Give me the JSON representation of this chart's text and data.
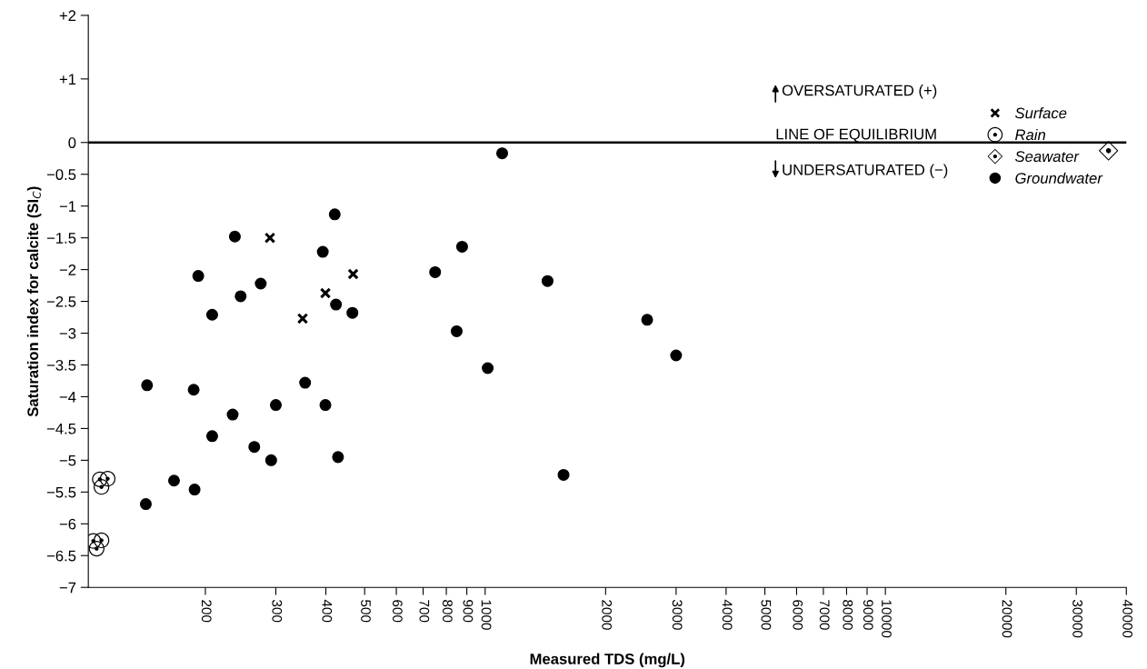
{
  "chart_data": {
    "type": "scatter",
    "xlabel": "Measured TDS (mg/L)",
    "ylabel": "Saturation index for calcite (SI$_{C}$)",
    "log": "x",
    "grid": false,
    "legend": "right",
    "xlim": [
      102,
      40000
    ],
    "xticks": [
      200,
      300,
      400,
      500,
      600,
      700,
      800,
      900,
      1000,
      2000,
      3000,
      4000,
      5000,
      6000,
      7000,
      8000,
      9000,
      10000,
      20000,
      30000,
      40000
    ],
    "ylim": [
      -7,
      2
    ],
    "yticks": [
      {
        "value": 2,
        "label": "+2"
      },
      {
        "value": 1,
        "label": "+1"
      },
      0,
      {
        "value": -0.5,
        "label": "−0.5"
      },
      {
        "value": -1,
        "label": "−1"
      },
      {
        "value": -1.5,
        "label": "−1.5"
      },
      {
        "value": -2,
        "label": "−2"
      },
      {
        "value": -2.5,
        "label": "−2.5"
      },
      {
        "value": -3,
        "label": "−3"
      },
      {
        "value": -3.5,
        "label": "−3.5"
      },
      {
        "value": -4,
        "label": "−4"
      },
      {
        "value": -4.5,
        "label": "−4.5"
      },
      {
        "value": -5,
        "label": "−5"
      },
      {
        "value": -5.5,
        "label": "−5.5"
      },
      {
        "value": -6,
        "label": "−6"
      },
      {
        "value": -6.5,
        "label": "−6.5"
      },
      {
        "value": -7,
        "label": "−7"
      }
    ],
    "ref_lines": [
      {
        "axis": "y",
        "value": 0,
        "label": "LINE OF EQUILIBRIUM",
        "color": "#000000"
      }
    ],
    "annotations": [
      "OVERSATURATED (+)",
      "UNDERSATURATED (−)"
    ],
    "series": [
      {
        "name": "Surface",
        "color": "#000000",
        "marker": "cross",
        "x": [
          290,
          468,
          399,
          350
        ],
        "values": [
          -1.5,
          -2.07,
          -2.37,
          -2.77
        ]
      },
      {
        "name": "Rain",
        "color": "#000000",
        "marker": "circle",
        "x": [
          109,
          114,
          110,
          105,
          110,
          107
        ],
        "values": [
          -5.3,
          -5.29,
          -5.42,
          -6.27,
          -6.26,
          -6.39
        ]
      },
      {
        "name": "Seawater",
        "color": "#000000",
        "marker": "diamond",
        "x": [
          36100
        ],
        "values": [
          -0.13
        ]
      },
      {
        "name": "Groundwater",
        "color": "#000000",
        "marker": "circle",
        "x": [
          1103,
          876,
          750,
          1432,
          849,
          1015,
          2540,
          3000,
          1570,
          421,
          237,
          393,
          192,
          275,
          245,
          424,
          466,
          208,
          143,
          187,
          355,
          300,
          399,
          234,
          208,
          265,
          292,
          429,
          167,
          188,
          142
        ],
        "values": [
          -0.17,
          -1.64,
          -2.04,
          -2.18,
          -2.97,
          -3.55,
          -2.79,
          -3.35,
          -5.23,
          -1.13,
          -1.48,
          -1.72,
          -2.1,
          -2.22,
          -2.42,
          -2.55,
          -2.68,
          -2.71,
          -3.82,
          -3.89,
          -3.78,
          -4.13,
          -4.13,
          -4.28,
          -4.62,
          -4.79,
          -5.0,
          -4.95,
          -5.32,
          -5.46,
          -5.69
        ]
      }
    ]
  }
}
